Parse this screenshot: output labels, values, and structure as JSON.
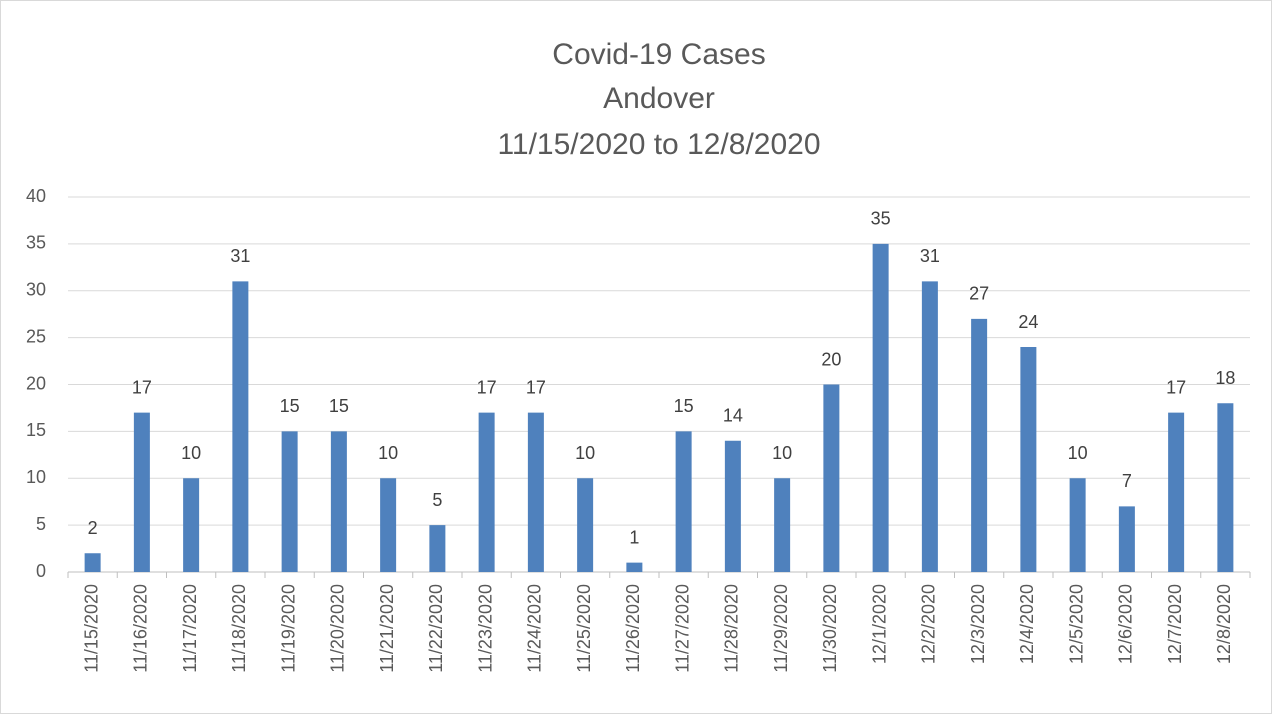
{
  "chart_data": {
    "type": "bar",
    "title": [
      "Covid-19 Cases",
      "Andover",
      "11/15/2020 to 12/8/2020"
    ],
    "categories": [
      "11/15/2020",
      "11/16/2020",
      "11/17/2020",
      "11/18/2020",
      "11/19/2020",
      "11/20/2020",
      "11/21/2020",
      "11/22/2020",
      "11/23/2020",
      "11/24/2020",
      "11/25/2020",
      "11/26/2020",
      "11/27/2020",
      "11/28/2020",
      "11/29/2020",
      "11/30/2020",
      "12/1/2020",
      "12/2/2020",
      "12/3/2020",
      "12/4/2020",
      "12/5/2020",
      "12/6/2020",
      "12/7/2020",
      "12/8/2020"
    ],
    "values": [
      2,
      17,
      10,
      31,
      15,
      15,
      10,
      5,
      17,
      17,
      10,
      1,
      15,
      14,
      10,
      20,
      35,
      31,
      27,
      24,
      10,
      7,
      17,
      18
    ],
    "color": "#4f81bd",
    "ylim": [
      0,
      40
    ],
    "yticks": [
      0,
      5,
      10,
      15,
      20,
      25,
      30,
      35,
      40
    ],
    "grid": true,
    "data_labels": true
  }
}
